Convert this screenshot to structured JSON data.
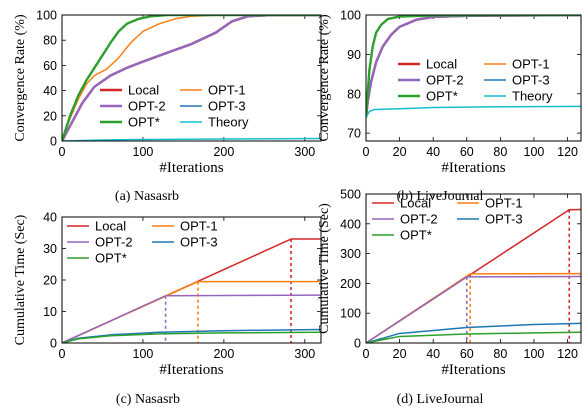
{
  "chart_data": [
    {
      "type": "line",
      "caption": "(a)  Nasasrb",
      "xlabel": "#Iterations",
      "ylabel": "Convergence Rate (%)",
      "xlim": [
        0,
        320
      ],
      "ylim": [
        0,
        100
      ],
      "xticks": [
        0,
        100,
        200,
        300
      ],
      "yticks": [
        0,
        20,
        40,
        60,
        80,
        100
      ],
      "legend_position": "bottom-right",
      "series": [
        {
          "name": "Local",
          "color": "#d62728",
          "points": [
            [
              0,
              0
            ],
            [
              10,
              12
            ],
            [
              25,
              30
            ],
            [
              40,
              43
            ],
            [
              60,
              52
            ],
            [
              80,
              58
            ],
            [
              100,
              63
            ],
            [
              130,
              70
            ],
            [
              160,
              77
            ],
            [
              190,
              86
            ],
            [
              210,
              95
            ],
            [
              230,
              99
            ],
            [
              260,
              100
            ],
            [
              320,
              100
            ]
          ]
        },
        {
          "name": "OPT-1",
          "color": "#ff7f0e",
          "points": [
            [
              0,
              0
            ],
            [
              10,
              18
            ],
            [
              20,
              33
            ],
            [
              30,
              45
            ],
            [
              40,
              52
            ],
            [
              55,
              57
            ],
            [
              70,
              66
            ],
            [
              85,
              78
            ],
            [
              100,
              87
            ],
            [
              120,
              93
            ],
            [
              140,
              97
            ],
            [
              160,
              99
            ],
            [
              200,
              100
            ],
            [
              320,
              100
            ]
          ]
        },
        {
          "name": "OPT-2",
          "color": "#9467bd",
          "points": [
            [
              0,
              0
            ],
            [
              10,
              12
            ],
            [
              25,
              30
            ],
            [
              40,
              43
            ],
            [
              60,
              52
            ],
            [
              80,
              58
            ],
            [
              100,
              63
            ],
            [
              130,
              70
            ],
            [
              160,
              77
            ],
            [
              190,
              86
            ],
            [
              210,
              95
            ],
            [
              230,
              99
            ],
            [
              260,
              100
            ],
            [
              320,
              100
            ]
          ]
        },
        {
          "name": "OPT-3",
          "color": "#1f77b4",
          "points": [
            [
              0,
              0
            ],
            [
              10,
              20
            ],
            [
              20,
              36
            ],
            [
              30,
              48
            ],
            [
              40,
              58
            ],
            [
              50,
              68
            ],
            [
              60,
              78
            ],
            [
              70,
              87
            ],
            [
              80,
              93
            ],
            [
              95,
              97
            ],
            [
              110,
              99
            ],
            [
              130,
              100
            ],
            [
              320,
              100
            ]
          ]
        },
        {
          "name": "OPT*",
          "color": "#2ca02c",
          "points": [
            [
              0,
              0
            ],
            [
              10,
              20
            ],
            [
              20,
              36
            ],
            [
              30,
              48
            ],
            [
              40,
              58
            ],
            [
              50,
              68
            ],
            [
              60,
              78
            ],
            [
              70,
              87
            ],
            [
              80,
              93
            ],
            [
              95,
              97
            ],
            [
              110,
              99
            ],
            [
              130,
              100
            ],
            [
              320,
              100
            ]
          ]
        },
        {
          "name": "Theory",
          "color": "#17becf",
          "points": [
            [
              0,
              0
            ],
            [
              50,
              0.8
            ],
            [
              100,
              1.2
            ],
            [
              200,
              1.6
            ],
            [
              320,
              2
            ]
          ]
        }
      ]
    },
    {
      "type": "line",
      "caption": "(b)  LiveJournal",
      "xlabel": "#Iterations",
      "ylabel": "Convergence Rate (%)",
      "xlim": [
        0,
        128
      ],
      "ylim": [
        68,
        100
      ],
      "xticks": [
        0,
        20,
        40,
        60,
        80,
        100,
        120
      ],
      "yticks": [
        70,
        80,
        90,
        100
      ],
      "legend_position": "bottom-right",
      "series": [
        {
          "name": "Local",
          "color": "#d62728",
          "points": [
            [
              0,
              74
            ],
            [
              1,
              78
            ],
            [
              3,
              83
            ],
            [
              6,
              88
            ],
            [
              10,
              92
            ],
            [
              15,
              95
            ],
            [
              20,
              97
            ],
            [
              30,
              98.8
            ],
            [
              40,
              99.5
            ],
            [
              60,
              99.8
            ],
            [
              128,
              100
            ]
          ]
        },
        {
          "name": "OPT-1",
          "color": "#ff7f0e",
          "points": [
            [
              0,
              74
            ],
            [
              1,
              80
            ],
            [
              2,
              86
            ],
            [
              4,
              92
            ],
            [
              6,
              95.5
            ],
            [
              9,
              97.5
            ],
            [
              13,
              99
            ],
            [
              20,
              99.6
            ],
            [
              40,
              99.9
            ],
            [
              128,
              100
            ]
          ]
        },
        {
          "name": "OPT-2",
          "color": "#9467bd",
          "points": [
            [
              0,
              74
            ],
            [
              1,
              78
            ],
            [
              3,
              83
            ],
            [
              6,
              88
            ],
            [
              10,
              92
            ],
            [
              15,
              95
            ],
            [
              20,
              97
            ],
            [
              30,
              98.8
            ],
            [
              40,
              99.5
            ],
            [
              60,
              99.8
            ],
            [
              128,
              100
            ]
          ]
        },
        {
          "name": "OPT-3",
          "color": "#1f77b4",
          "points": [
            [
              0,
              74
            ],
            [
              1,
              80
            ],
            [
              2,
              86
            ],
            [
              4,
              92
            ],
            [
              6,
              95.5
            ],
            [
              9,
              97.5
            ],
            [
              13,
              99
            ],
            [
              20,
              99.6
            ],
            [
              40,
              99.9
            ],
            [
              128,
              100
            ]
          ]
        },
        {
          "name": "OPT*",
          "color": "#2ca02c",
          "points": [
            [
              0,
              74
            ],
            [
              1,
              80
            ],
            [
              2,
              86
            ],
            [
              4,
              92
            ],
            [
              6,
              95.5
            ],
            [
              9,
              97.5
            ],
            [
              13,
              99
            ],
            [
              20,
              99.6
            ],
            [
              40,
              99.9
            ],
            [
              128,
              100
            ]
          ]
        },
        {
          "name": "Theory",
          "color": "#17becf",
          "points": [
            [
              0,
              74
            ],
            [
              2,
              75.5
            ],
            [
              5,
              76
            ],
            [
              20,
              76.2
            ],
            [
              40,
              76.5
            ],
            [
              80,
              76.7
            ],
            [
              128,
              76.8
            ]
          ]
        }
      ]
    },
    {
      "type": "line",
      "caption": "(c)  Nasasrb",
      "xlabel": "#Iterations",
      "ylabel": "Cumulative Time (Sec)",
      "xlim": [
        0,
        320
      ],
      "ylim": [
        0,
        40
      ],
      "xticks": [
        0,
        100,
        200,
        300
      ],
      "yticks": [
        0,
        10,
        20,
        30,
        40
      ],
      "legend_position": "top-left",
      "series": [
        {
          "name": "Local",
          "color": "#d62728",
          "points": [
            [
              0,
              0
            ],
            [
              283,
              33
            ],
            [
              320,
              33
            ]
          ]
        },
        {
          "name": "OPT-1",
          "color": "#ff7f0e",
          "points": [
            [
              0,
              0
            ],
            [
              168,
              19.5
            ],
            [
              320,
              19.5
            ]
          ]
        },
        {
          "name": "OPT-2",
          "color": "#9467bd",
          "points": [
            [
              0,
              0
            ],
            [
              128,
              15
            ],
            [
              320,
              15.2
            ]
          ]
        },
        {
          "name": "OPT-3",
          "color": "#1f77b4",
          "points": [
            [
              0,
              0
            ],
            [
              20,
              1.5
            ],
            [
              60,
              2.6
            ],
            [
              120,
              3.4
            ],
            [
              200,
              3.9
            ],
            [
              320,
              4.3
            ]
          ]
        },
        {
          "name": "OPT*",
          "color": "#2ca02c",
          "points": [
            [
              0,
              0
            ],
            [
              20,
              1.3
            ],
            [
              60,
              2.3
            ],
            [
              120,
              2.9
            ],
            [
              200,
              3.2
            ],
            [
              320,
              3.4
            ]
          ]
        }
      ],
      "markers": [
        {
          "x": 128,
          "y": 15,
          "color": "#9467bd"
        },
        {
          "x": 168,
          "y": 19.5,
          "color": "#ff7f0e"
        },
        {
          "x": 283,
          "y": 33,
          "color": "#d62728"
        }
      ]
    },
    {
      "type": "line",
      "caption": "(d)  LiveJournal",
      "xlabel": "#Iterations",
      "ylabel": "Cumulative Time (Sec)",
      "xlim": [
        0,
        128
      ],
      "ylim": [
        0,
        500
      ],
      "xticks": [
        0,
        20,
        40,
        60,
        80,
        100,
        120
      ],
      "yticks": [
        0,
        100,
        200,
        300,
        400,
        500
      ],
      "legend_position": "top-left",
      "series": [
        {
          "name": "Local",
          "color": "#d62728",
          "points": [
            [
              0,
              0
            ],
            [
              121,
              447
            ],
            [
              128,
              448
            ]
          ]
        },
        {
          "name": "OPT-1",
          "color": "#ff7f0e",
          "points": [
            [
              0,
              0
            ],
            [
              62,
              232
            ],
            [
              128,
              233
            ]
          ]
        },
        {
          "name": "OPT-2",
          "color": "#9467bd",
          "points": [
            [
              0,
              0
            ],
            [
              60,
              222
            ],
            [
              128,
              223
            ]
          ]
        },
        {
          "name": "OPT-3",
          "color": "#1f77b4",
          "points": [
            [
              0,
              0
            ],
            [
              20,
              32
            ],
            [
              60,
              52
            ],
            [
              100,
              62
            ],
            [
              128,
              66
            ]
          ]
        },
        {
          "name": "OPT*",
          "color": "#2ca02c",
          "points": [
            [
              0,
              0
            ],
            [
              20,
              22
            ],
            [
              60,
              30
            ],
            [
              100,
              34
            ],
            [
              128,
              36
            ]
          ]
        }
      ],
      "markers": [
        {
          "x": 60,
          "y": 222,
          "color": "#9467bd"
        },
        {
          "x": 62,
          "y": 232,
          "color": "#ff7f0e"
        },
        {
          "x": 121,
          "y": 447,
          "color": "#d62728"
        }
      ]
    }
  ]
}
